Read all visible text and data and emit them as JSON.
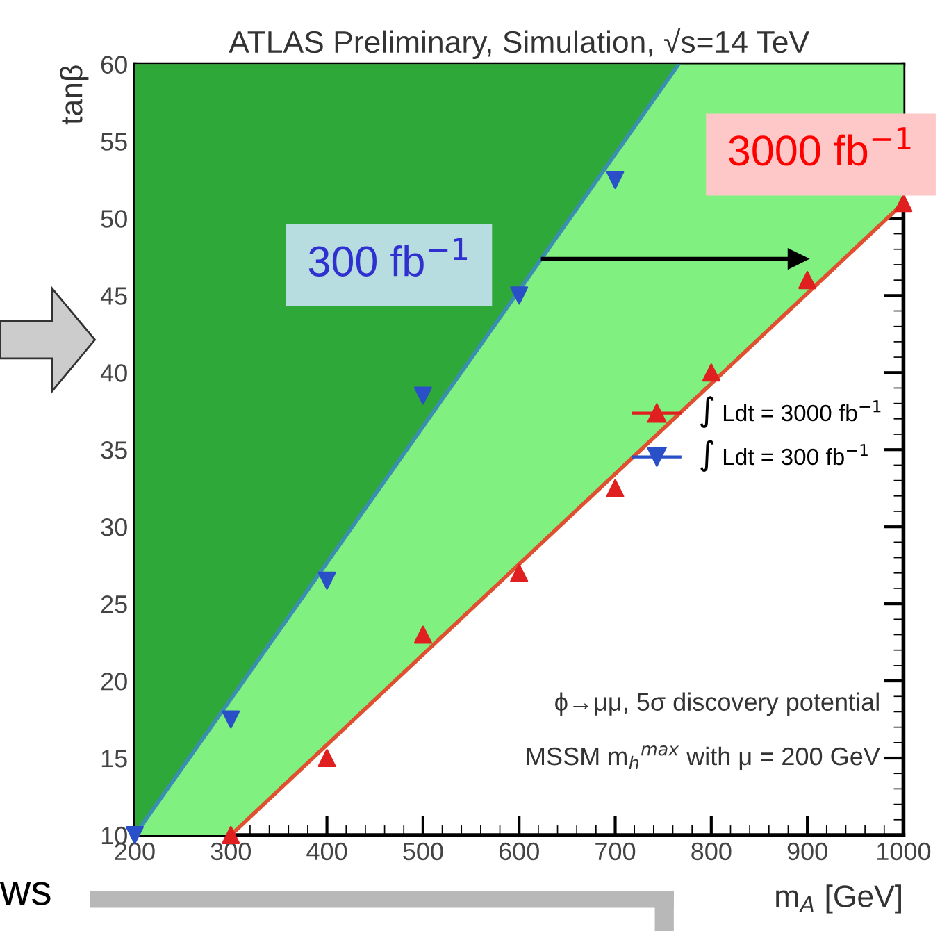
{
  "chart_data": {
    "type": "line",
    "title": "ATLAS Preliminary, Simulation, √s=14 TeV",
    "xlabel": "m$_{A}$ [GeV]",
    "ylabel": "tanβ",
    "xlim": [
      200,
      1000
    ],
    "ylim": [
      10,
      60
    ],
    "xticks": [
      200,
      300,
      400,
      500,
      600,
      700,
      800,
      900,
      1000
    ],
    "yticks": [
      10,
      15,
      20,
      25,
      30,
      35,
      40,
      45,
      50,
      55,
      60
    ],
    "grid": false,
    "legend": "right",
    "series": [
      {
        "color": "#e05030",
        "x": [
          200,
          300,
          1000
        ],
        "values": [
          null,
          10,
          51
        ],
        "lower": [
          10,
          10,
          51
        ],
        "upper": [
          60,
          60,
          60
        ],
        "marker": "none"
      },
      {
        "color": "#3a8fb0",
        "x": [
          200,
          766
        ],
        "values": [
          10,
          60
        ],
        "lower": [
          10,
          60
        ],
        "upper": [
          60,
          60
        ],
        "marker": "none"
      },
      {
        "type": "scatter",
        "name": "∫ Ldt = 3000 fb$^{−1}$",
        "color": "#e02020",
        "marker": "triangle",
        "x": [
          300,
          400,
          500,
          600,
          700,
          800,
          900,
          1000
        ],
        "values": [
          10,
          15,
          23,
          27,
          32.5,
          40,
          46,
          51
        ]
      },
      {
        "type": "scatter",
        "name": "∫ Ldt = 300 fb$^{−1}$",
        "color": "#2a50c8",
        "marker": "triangle_down",
        "x": [
          200,
          300,
          400,
          500,
          600,
          700
        ],
        "values": [
          10,
          17.5,
          26.5,
          38.5,
          45,
          52.5
        ]
      }
    ],
    "annotations": [
      "300 fb$^{−1}$",
      "3000 fb$^{−1}$",
      "ϕ→μμ, 5σ discovery potential",
      "MSSM m$_{h}$$^{max}$ with μ = 200 GeV",
      "ws"
    ]
  }
}
